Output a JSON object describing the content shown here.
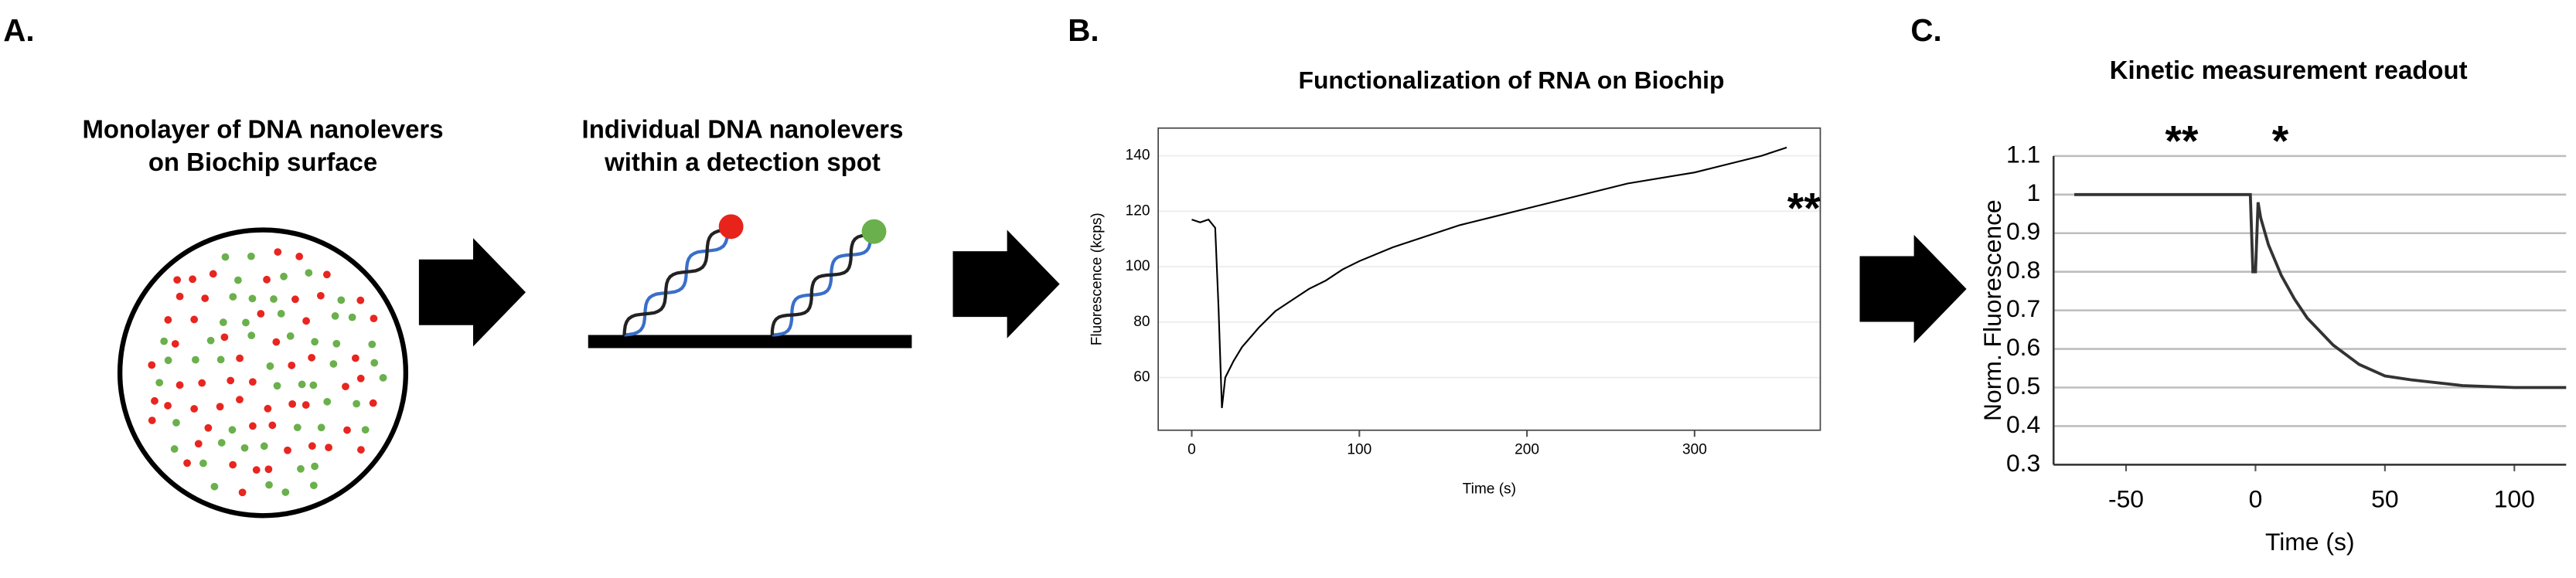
{
  "panel_labels": [
    "A.",
    "B.",
    "C."
  ],
  "diagram": {
    "monolayer_title": [
      "Monolayer of DNA nanolevers",
      "on Biochip surface"
    ],
    "individual_title": [
      "Individual DNA nanolevers",
      "within a detection spot"
    ]
  },
  "chart_data": [
    {
      "type": "line",
      "title": "Functionalization of RNA on Biochip",
      "x_label": "Time (s)",
      "y_label": "Fluorescence (kcps)",
      "x": [
        0,
        5,
        10,
        14,
        16,
        18,
        20,
        25,
        30,
        40,
        50,
        60,
        70,
        80,
        90,
        100,
        120,
        140,
        160,
        180,
        200,
        220,
        240,
        260,
        280,
        300,
        320,
        340,
        355
      ],
      "values": [
        117,
        116,
        117,
        114,
        85,
        49,
        60,
        66,
        71,
        78,
        84,
        88,
        92,
        95,
        99,
        102,
        107,
        111,
        115,
        118,
        121,
        124,
        127,
        130,
        132,
        134,
        137,
        140,
        143
      ],
      "color": "#000000",
      "xlim": [
        -20,
        375
      ],
      "ylim": [
        41,
        150
      ],
      "xticks": [
        0,
        100,
        200,
        300
      ],
      "yticks": [
        60,
        80,
        100,
        120,
        140
      ],
      "grid": true,
      "annotations": [
        {
          "text": "**",
          "color": "#f58b3a"
        }
      ]
    },
    {
      "type": "line",
      "title": "Kinetic measurement readout",
      "x_label": "Time (s)",
      "y_label": "Norm. Fluorescence",
      "x": [
        -70,
        -60,
        -50,
        -40,
        -30,
        -20,
        -10,
        -2,
        -1,
        0,
        1,
        2,
        5,
        10,
        15,
        20,
        30,
        40,
        50,
        60,
        80,
        100,
        120
      ],
      "values": [
        1.0,
        1.0,
        1.0,
        1.0,
        1.0,
        1.0,
        1.0,
        1.0,
        0.8,
        0.8,
        0.98,
        0.94,
        0.87,
        0.79,
        0.73,
        0.68,
        0.61,
        0.56,
        0.53,
        0.52,
        0.505,
        0.5,
        0.5
      ],
      "color": "#333333",
      "xlim": [
        -78,
        120
      ],
      "ylim": [
        0.3,
        1.1
      ],
      "xticks": [
        -50,
        0,
        50,
        100
      ],
      "yticks": [
        0.3,
        0.4,
        0.5,
        0.6,
        0.7,
        0.8,
        0.9,
        1,
        {
          "value": 1.1,
          "label": "1.1"
        }
      ],
      "grid": true,
      "annotations": [
        {
          "text": "**",
          "color": "#f58b3a"
        },
        {
          "text": "*",
          "color": "#1f6fc0"
        }
      ]
    }
  ]
}
